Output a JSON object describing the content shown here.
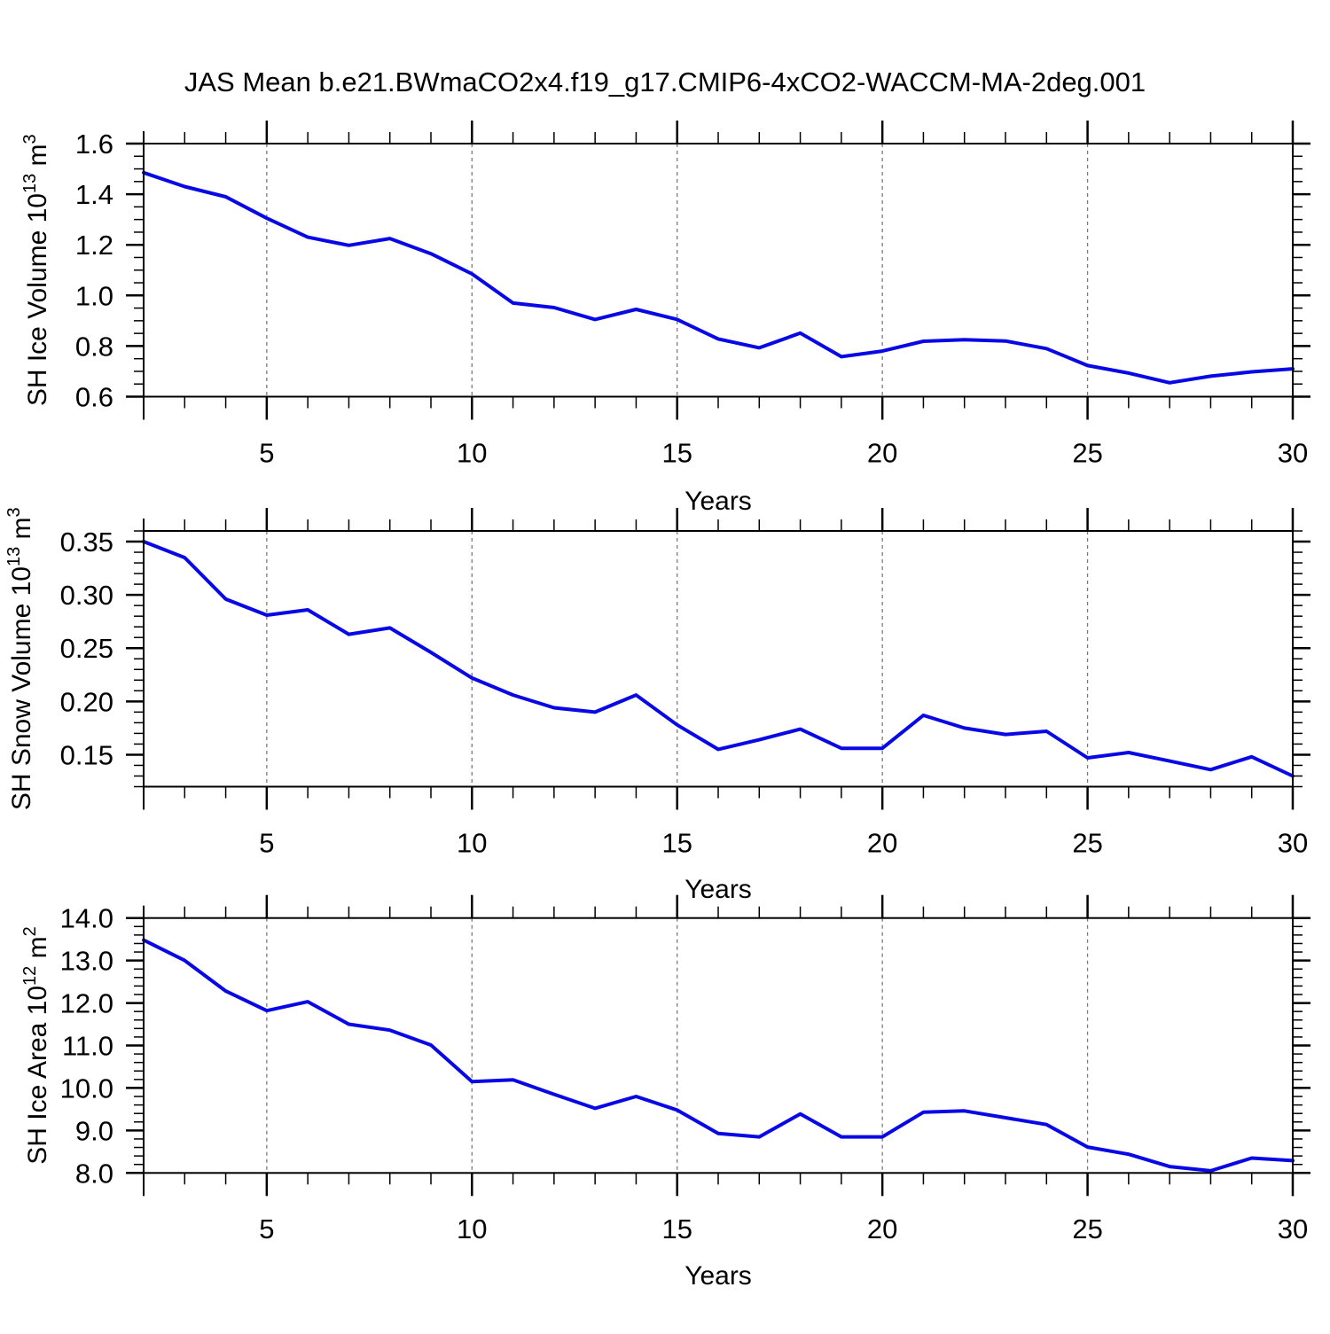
{
  "title": "JAS Mean b.e21.BWmaCO2x4.f19_g17.CMIP6-4xCO2-WACCM-MA-2deg.001",
  "colors": {
    "line": "#0808e6",
    "grid": "#7a7a7a",
    "axis": "#000000",
    "background": "#ffffff"
  },
  "chart_data": [
    {
      "type": "line",
      "name": "sh-ice-volume",
      "ylabel_segments": [
        {
          "text": "SH Ice Volume 10",
          "sup": false
        },
        {
          "text": "13",
          "sup": true
        },
        {
          "text": " m",
          "sup": false
        },
        {
          "text": "3",
          "sup": true
        }
      ],
      "xlabel": "Years",
      "x": [
        2,
        3,
        4,
        5,
        6,
        7,
        8,
        9,
        10,
        11,
        12,
        13,
        14,
        15,
        16,
        17,
        18,
        19,
        20,
        21,
        22,
        23,
        24,
        25,
        26,
        27,
        28,
        29,
        30
      ],
      "values": [
        1.485,
        1.43,
        1.39,
        1.305,
        1.23,
        1.198,
        1.225,
        1.165,
        1.085,
        0.97,
        0.952,
        0.905,
        0.945,
        0.905,
        0.828,
        0.793,
        0.851,
        0.758,
        0.78,
        0.819,
        0.825,
        0.82,
        0.79,
        0.723,
        0.693,
        0.655,
        0.681,
        0.698,
        0.71
      ],
      "xlim": [
        2,
        30
      ],
      "ylim": [
        0.6,
        1.6
      ],
      "xticks": {
        "values": [
          5,
          10,
          15,
          20,
          25,
          30
        ],
        "labels": [
          "5",
          "10",
          "15",
          "20",
          "25",
          "30"
        ],
        "minor_step": 1
      },
      "yticks": {
        "values": [
          0.6,
          0.8,
          1.0,
          1.2,
          1.4,
          1.6
        ],
        "labels": [
          "0.6",
          "0.8",
          "1.0",
          "1.2",
          "1.4",
          "1.6"
        ],
        "minor_step": 0.05
      },
      "grid": "vertical-dashed-at-major-x"
    },
    {
      "type": "line",
      "name": "sh-snow-volume",
      "ylabel_segments": [
        {
          "text": "SH Snow Volume 10",
          "sup": false
        },
        {
          "text": "13",
          "sup": true
        },
        {
          "text": " m",
          "sup": false
        },
        {
          "text": "3",
          "sup": true
        }
      ],
      "xlabel": "Years",
      "x": [
        2,
        3,
        4,
        5,
        6,
        7,
        8,
        9,
        10,
        11,
        12,
        13,
        14,
        15,
        16,
        17,
        18,
        19,
        20,
        21,
        22,
        23,
        24,
        25,
        26,
        27,
        28,
        29,
        30
      ],
      "values": [
        0.35,
        0.335,
        0.296,
        0.281,
        0.286,
        0.263,
        0.269,
        0.246,
        0.222,
        0.206,
        0.194,
        0.19,
        0.206,
        0.178,
        0.155,
        0.164,
        0.174,
        0.156,
        0.156,
        0.187,
        0.175,
        0.169,
        0.172,
        0.147,
        0.152,
        0.144,
        0.136,
        0.148,
        0.13
      ],
      "xlim": [
        2,
        30
      ],
      "ylim": [
        0.12,
        0.36
      ],
      "xticks": {
        "values": [
          5,
          10,
          15,
          20,
          25,
          30
        ],
        "labels": [
          "5",
          "10",
          "15",
          "20",
          "25",
          "30"
        ],
        "minor_step": 1
      },
      "yticks": {
        "values": [
          0.15,
          0.2,
          0.25,
          0.3,
          0.35
        ],
        "labels": [
          "0.15",
          "0.20",
          "0.25",
          "0.30",
          "0.35"
        ],
        "minor_step": 0.01
      },
      "grid": "vertical-dashed-at-major-x"
    },
    {
      "type": "line",
      "name": "sh-ice-area",
      "ylabel_segments": [
        {
          "text": "SH Ice Area 10",
          "sup": false
        },
        {
          "text": "12",
          "sup": true
        },
        {
          "text": " m",
          "sup": false
        },
        {
          "text": "2",
          "sup": true
        }
      ],
      "xlabel": "Years",
      "x": [
        2,
        3,
        4,
        5,
        6,
        7,
        8,
        9,
        10,
        11,
        12,
        13,
        14,
        15,
        16,
        17,
        18,
        19,
        20,
        21,
        22,
        23,
        24,
        25,
        26,
        27,
        28,
        29,
        30
      ],
      "values": [
        13.48,
        13.0,
        12.28,
        11.82,
        12.03,
        11.5,
        11.36,
        11.01,
        10.15,
        10.19,
        9.85,
        9.52,
        9.8,
        9.48,
        8.93,
        8.85,
        9.39,
        8.85,
        8.85,
        9.43,
        9.46,
        9.3,
        9.14,
        8.61,
        8.44,
        8.15,
        8.05,
        8.35,
        8.29
      ],
      "xlim": [
        2,
        30
      ],
      "ylim": [
        8.0,
        14.0
      ],
      "xticks": {
        "values": [
          5,
          10,
          15,
          20,
          25,
          30
        ],
        "labels": [
          "5",
          "10",
          "15",
          "20",
          "25",
          "30"
        ],
        "minor_step": 1
      },
      "yticks": {
        "values": [
          8.0,
          9.0,
          10.0,
          11.0,
          12.0,
          13.0,
          14.0
        ],
        "labels": [
          "8.0",
          "9.0",
          "10.0",
          "11.0",
          "12.0",
          "13.0",
          "14.0"
        ],
        "minor_step": 0.2
      },
      "grid": "vertical-dashed-at-major-x"
    }
  ]
}
